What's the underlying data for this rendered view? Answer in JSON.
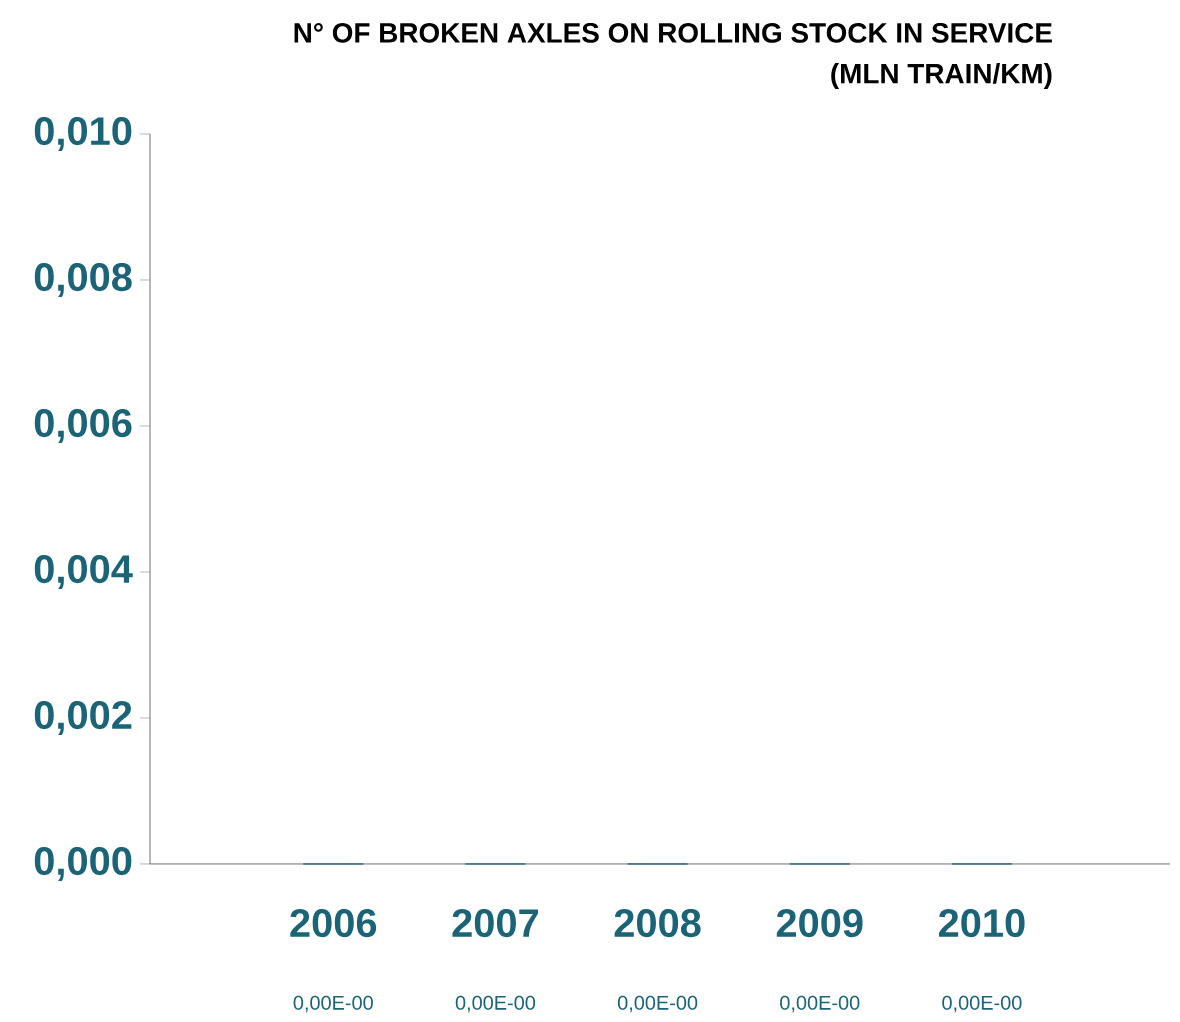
{
  "chart_data": {
    "type": "bar",
    "title": "N° OF BROKEN AXLES ON ROLLING STOCK IN SERVICE",
    "subtitle": "(MLN TRAIN/KM)",
    "categories": [
      "2006",
      "2007",
      "2008",
      "2009",
      "2010"
    ],
    "values": [
      0,
      0,
      0,
      0,
      0
    ],
    "color": "#1b6477",
    "value_labels": [
      "0,00E-00",
      "0,00E-00",
      "0,00E-00",
      "0,00E-00",
      "0,00E-00"
    ],
    "ylim": [
      0,
      0.01
    ],
    "yticks": [
      {
        "value": 0,
        "label": "0,000"
      },
      {
        "value": 0.002,
        "label": "0,002"
      },
      {
        "value": 0.004,
        "label": "0,004"
      },
      {
        "value": 0.006,
        "label": "0,006"
      },
      {
        "value": 0.008,
        "label": "0,008"
      },
      {
        "value": 0.01,
        "label": "0,010"
      }
    ]
  }
}
